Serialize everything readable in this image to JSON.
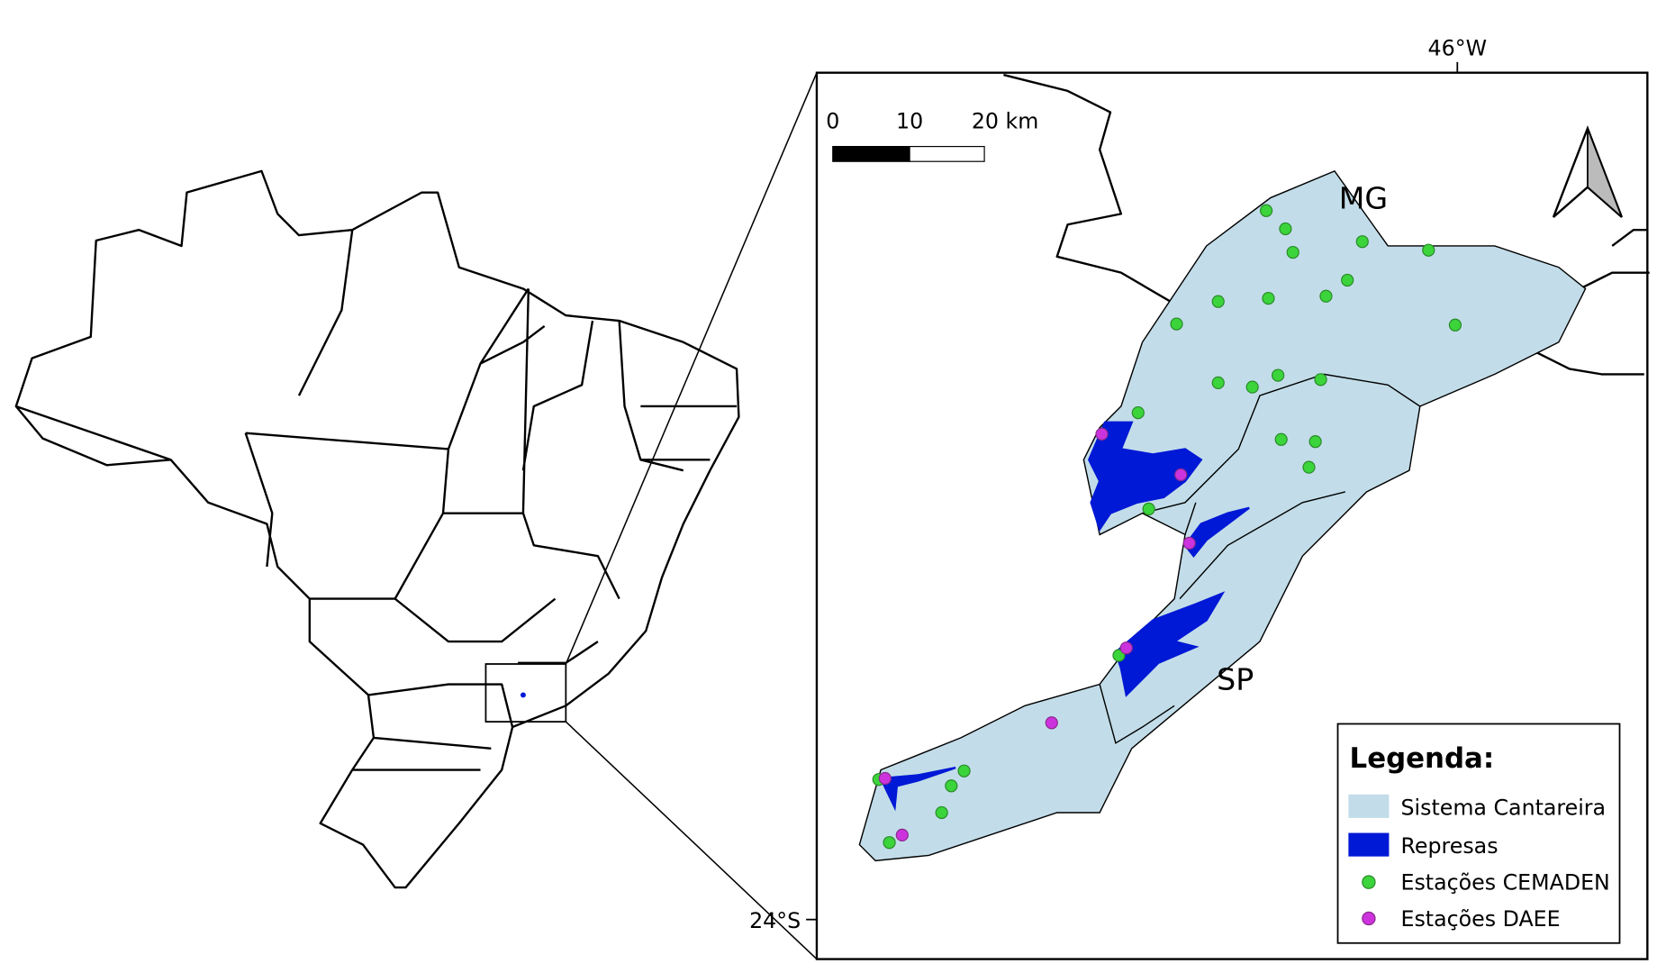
{
  "map": {
    "graticule": {
      "longitude": "46°W",
      "latitude": "24°S"
    },
    "scale_bar": {
      "labels": [
        "0",
        "10",
        "20 km"
      ]
    },
    "region_labels": [
      "MG",
      "SP"
    ],
    "legend": {
      "title": "Legenda:",
      "items": [
        "Sistema Cantareira",
        "Represas",
        "Estações CEMADEN",
        "Estações DAEE"
      ]
    }
  }
}
